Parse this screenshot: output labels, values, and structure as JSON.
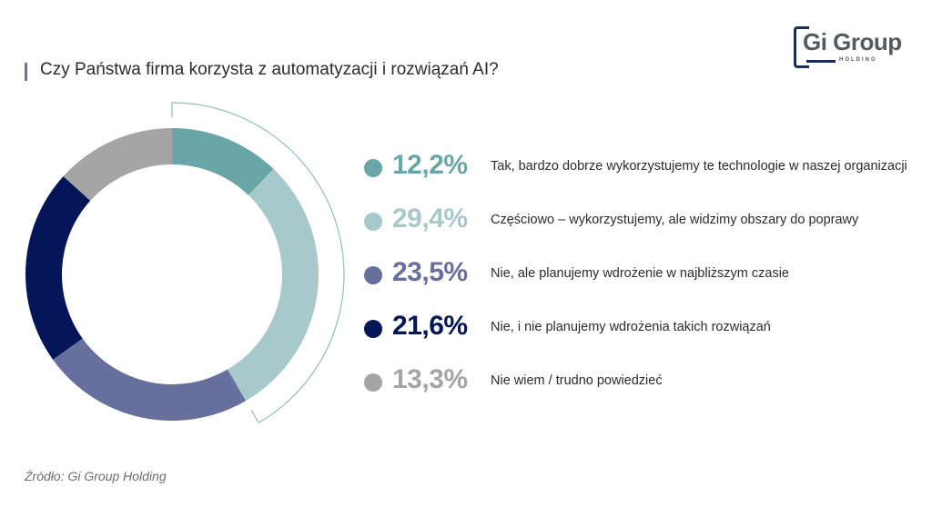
{
  "header": {
    "title": "Czy Państwa firma korzysta z automatyzacji i rozwiązań AI?",
    "accent_color": "#6b73a3"
  },
  "logo": {
    "main": "Gi Group",
    "sub": "HOLDING"
  },
  "legend": [
    {
      "value": "12,2%",
      "label": "Tak, bardzo dobrze wykorzystujemy te technologie w naszej organizacji",
      "color": "#6aa6a8"
    },
    {
      "value": "29,4%",
      "label": "Częściowo – wykorzystujemy, ale widzimy obszary do poprawy",
      "color": "#a8c9cb"
    },
    {
      "value": "23,5%",
      "label": "Nie, ale planujemy wdrożenie w najbliższym czasie",
      "color": "#67709d"
    },
    {
      "value": "21,6%",
      "label": "Nie, i nie planujemy wdrożenia takich rozwiązań",
      "color": "#041657"
    },
    {
      "value": "13,3%",
      "label": "Nie wiem / trudno powiedzieć",
      "color": "#a5a5a5"
    }
  ],
  "footer": {
    "source": "Źródło: Gi Group Holding"
  },
  "chart_data": {
    "type": "pie",
    "variant": "donut",
    "title": "Czy Państwa firma korzysta z automatyzacji i rozwiązań AI?",
    "categories": [
      "Tak, bardzo dobrze wykorzystujemy te technologie w naszej organizacji",
      "Częściowo – wykorzystujemy, ale widzimy obszary do poprawy",
      "Nie, ale planujemy wdrożenie w najbliższym czasie",
      "Nie, i nie planujemy wdrożenia takich rozwiązań",
      "Nie wiem / trudno powiedzieć"
    ],
    "values": [
      12.2,
      29.4,
      23.5,
      21.6,
      13.3
    ],
    "colors": [
      "#6aa6a8",
      "#a8c9cb",
      "#67709d",
      "#041657",
      "#a5a5a5"
    ],
    "unit": "%",
    "legend_position": "right",
    "annotation": "bracket arc grouping first two segments (Tak + Częściowo = 41,6%)"
  }
}
